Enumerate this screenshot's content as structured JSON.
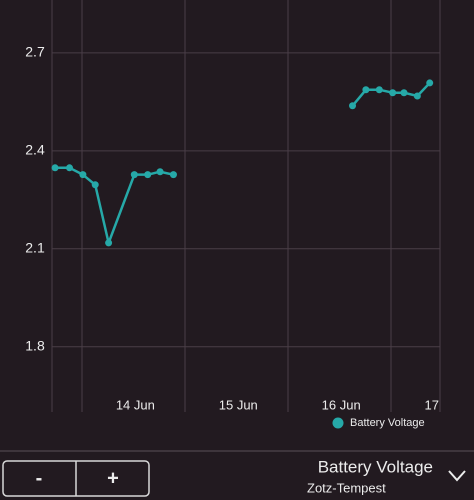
{
  "chart_data": {
    "type": "line",
    "x": [
      13.22,
      13.36,
      13.49,
      13.61,
      13.74,
      13.99,
      14.12,
      14.24,
      14.37,
      15.2,
      16.11,
      16.24,
      16.37,
      16.5,
      16.61,
      16.74,
      16.86
    ],
    "series": [
      {
        "name": "Battery Voltage",
        "color": "#26a9a8",
        "values": [
          2.348,
          2.348,
          2.327,
          2.296,
          2.118,
          2.327,
          2.327,
          2.336,
          2.327,
          null,
          2.538,
          2.587,
          2.587,
          2.578,
          2.578,
          2.568,
          2.608
        ]
      }
    ],
    "xlim": [
      13.19,
      16.96
    ],
    "xticks": [
      {
        "value": 14,
        "label": "14 Jun"
      },
      {
        "value": 15,
        "label": "15 Jun"
      },
      {
        "value": 16,
        "label": "16 Jun"
      },
      {
        "value": 17,
        "label": "17"
      }
    ],
    "ylim": [
      1.6,
      2.862
    ],
    "yticks": [
      1.8,
      2.1,
      2.4,
      2.7
    ],
    "grid": true
  },
  "controls": {
    "decrease": "-",
    "increase": "+",
    "title": "Battery Voltage",
    "subtitle": "Zotz-Tempest"
  }
}
